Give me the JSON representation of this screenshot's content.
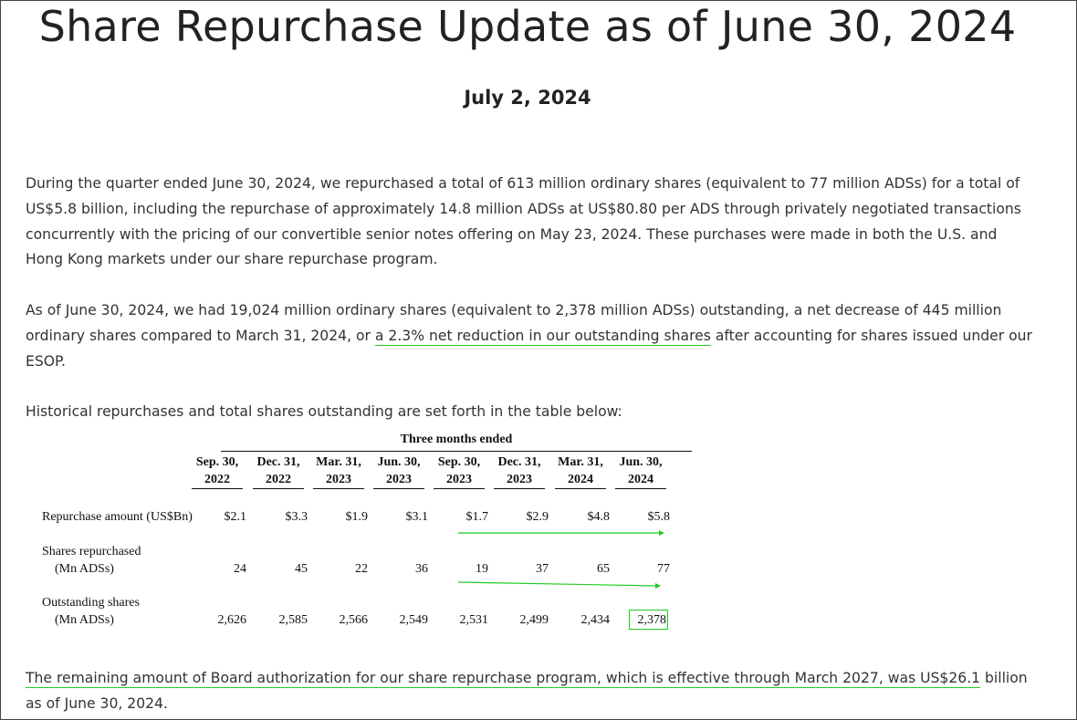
{
  "title": "Share Repurchase Update as of June 30, 2024",
  "date": "July 2, 2024",
  "paragraphs": {
    "p1": "During the quarter ended June 30, 2024, we repurchased a total of 613 million ordinary shares (equivalent to 77 million ADSs) for a total of US$5.8 billion, including the repurchase of approximately 14.8 million ADSs at US$80.80 per ADS through privately negotiated transactions concurrently with the pricing of our convertible senior notes offering on May 23, 2024. These purchases were made in both the U.S. and Hong Kong markets under our share repurchase program.",
    "p2_before": "As of June 30, 2024, we had 19,024 million ordinary shares (equivalent to 2,378 million ADSs) outstanding, a net decrease of 445 million ordinary shares compared to March 31, 2024, or ",
    "p2_highlight": "a 2.3% net reduction in our outstanding shares",
    "p2_after": " after accounting for shares issued under our ESOP.",
    "p3": "Historical repurchases and total shares outstanding are set forth in the table below:",
    "p4_highlight": "The remaining amount of Board authorization for our share repurchase program, which is effective through March 2027, was US$26.1",
    "p4_after": " billion as of June 30, 2024."
  },
  "table": {
    "group_header": "Three months ended",
    "columns": [
      {
        "line1": "Sep. 30,",
        "line2": "2022"
      },
      {
        "line1": "Dec. 31,",
        "line2": "2022"
      },
      {
        "line1": "Mar. 31,",
        "line2": "2023"
      },
      {
        "line1": "Jun. 30,",
        "line2": "2023"
      },
      {
        "line1": "Sep. 30,",
        "line2": "2023"
      },
      {
        "line1": "Dec. 31,",
        "line2": "2023"
      },
      {
        "line1": "Mar. 31,",
        "line2": "2024"
      },
      {
        "line1": "Jun. 30,",
        "line2": "2024"
      }
    ],
    "rows": [
      {
        "label1": "Repurchase amount (US$Bn)",
        "label2": "",
        "values": [
          "$2.1",
          "$3.3",
          "$1.9",
          "$3.1",
          "$1.7",
          "$2.9",
          "$4.8",
          "$5.8"
        ]
      },
      {
        "label1": "Shares repurchased",
        "label2": "(Mn ADSs)",
        "values": [
          "24",
          "45",
          "22",
          "36",
          "19",
          "37",
          "65",
          "77"
        ]
      },
      {
        "label1": "Outstanding shares",
        "label2": "(Mn ADSs)",
        "values": [
          "2,626",
          "2,585",
          "2,566",
          "2,549",
          "2,531",
          "2,499",
          "2,434",
          "2,378"
        ]
      }
    ]
  },
  "colors": {
    "annotation": "#22cc22",
    "text": "#333333",
    "title": "#222222"
  }
}
